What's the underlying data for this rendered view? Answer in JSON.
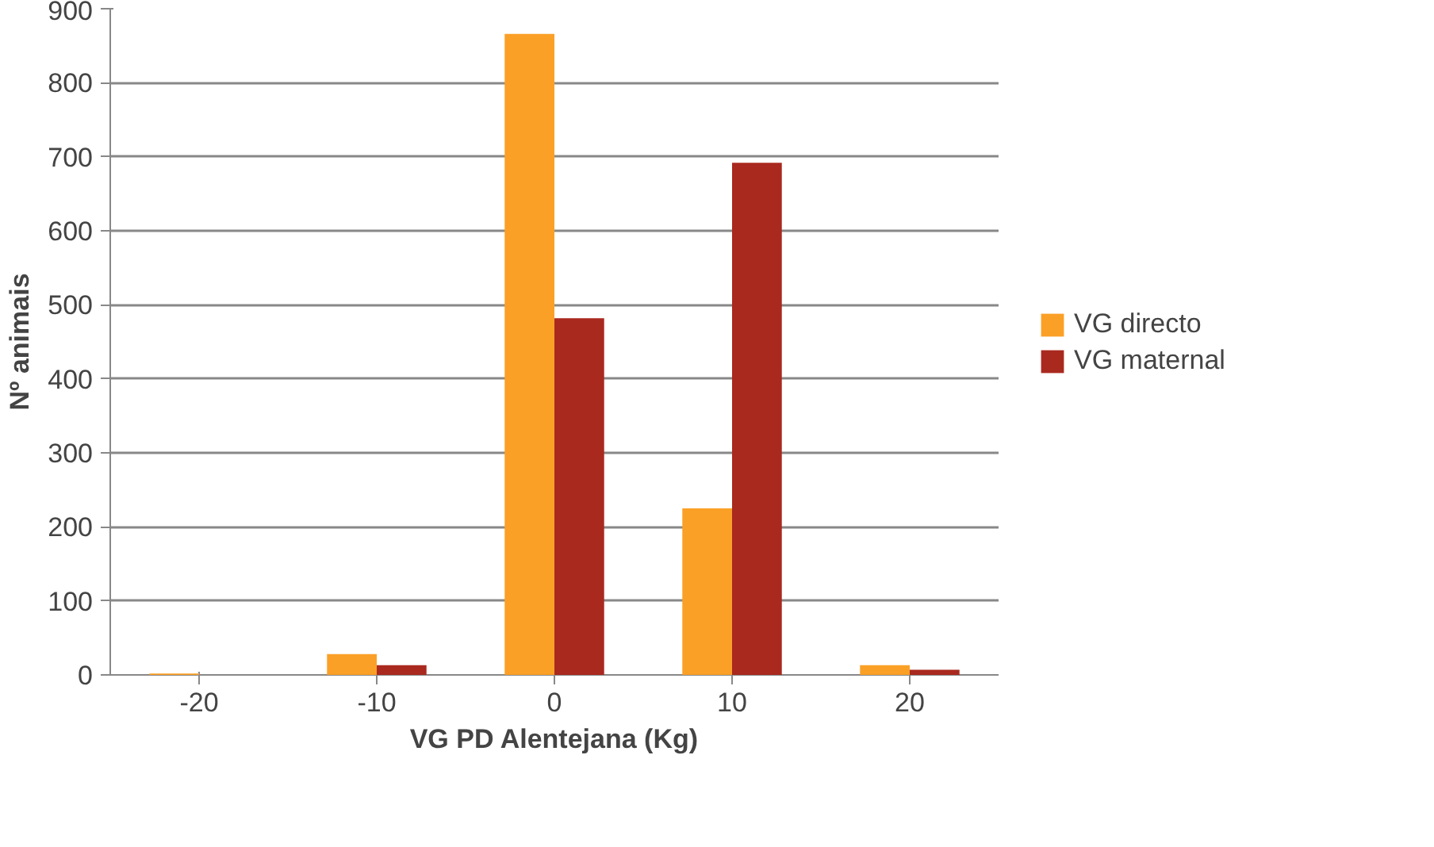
{
  "chart_data": {
    "type": "bar",
    "xlabel": "VG PD Alentejana (Kg)",
    "ylabel": "Nº animais",
    "categories": [
      "-20",
      "-10",
      "0",
      "10",
      "20"
    ],
    "series": [
      {
        "name": "VG directo",
        "color": "#fba026",
        "values": [
          2,
          28,
          866,
          225,
          13
        ]
      },
      {
        "name": "VG maternal",
        "color": "#a9291f",
        "values": [
          0,
          13,
          482,
          692,
          7
        ]
      }
    ],
    "ylim": [
      0,
      900
    ],
    "yticks": [
      0,
      100,
      200,
      300,
      400,
      500,
      600,
      700,
      800,
      900
    ],
    "grid": "y",
    "legend": "right"
  }
}
